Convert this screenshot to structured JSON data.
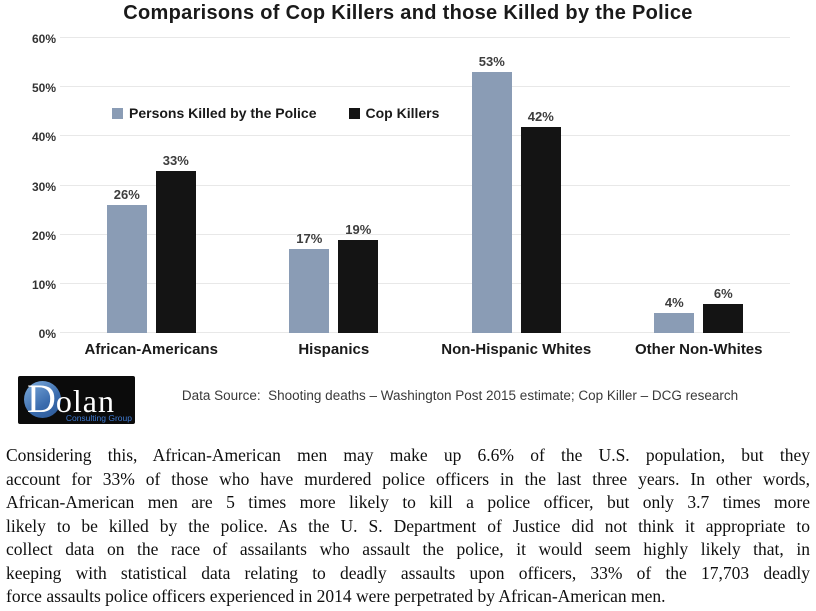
{
  "chart_data": {
    "type": "bar",
    "title": "Comparisons of Cop Killers and those Killed by the Police",
    "categories": [
      "African-Americans",
      "Hispanics",
      "Non-Hispanic Whites",
      "Other Non-Whites"
    ],
    "series": [
      {
        "name": "Persons Killed by the Police",
        "color": "#8A9CB5",
        "values": [
          26,
          17,
          53,
          4
        ]
      },
      {
        "name": "Cop Killers",
        "color": "#141414",
        "values": [
          33,
          19,
          42,
          6
        ]
      }
    ],
    "xlabel": "",
    "ylabel": "",
    "ylim": [
      0,
      60
    ],
    "ytick_step": 10,
    "ytick_suffix": "%",
    "value_label_suffix": "%",
    "grid": true,
    "legend_position": "inside-top-left"
  },
  "footer": {
    "source_note": "Data Source:  Shooting deaths – Washington Post 2015 estimate; Cop Killer – DCG research"
  },
  "logo": {
    "brand_initial": "D",
    "brand_rest": "olan",
    "subtitle": "Consulting Group"
  },
  "body_text": {
    "lines": [
      "Considering this, African-American men may make up 6.6% of the U.S. population, but they",
      "account for 33% of those who have murdered police officers  in the last three years. In other words,",
      "African-American men are 5 times more likely to kill a police officer, but only 3.7 times more",
      "likely to be killed by the police. As the U. S. Department of Justice did not think it appropriate to",
      "collect data on the race of assailants  who assault the police, it would seem highly likely that, in",
      "keeping with statistical data relating to deadly assaults upon officers,  33% of the 17,703 deadly",
      "force assaults police officers experienced in 2014 were perpetrated by African-American men."
    ]
  }
}
